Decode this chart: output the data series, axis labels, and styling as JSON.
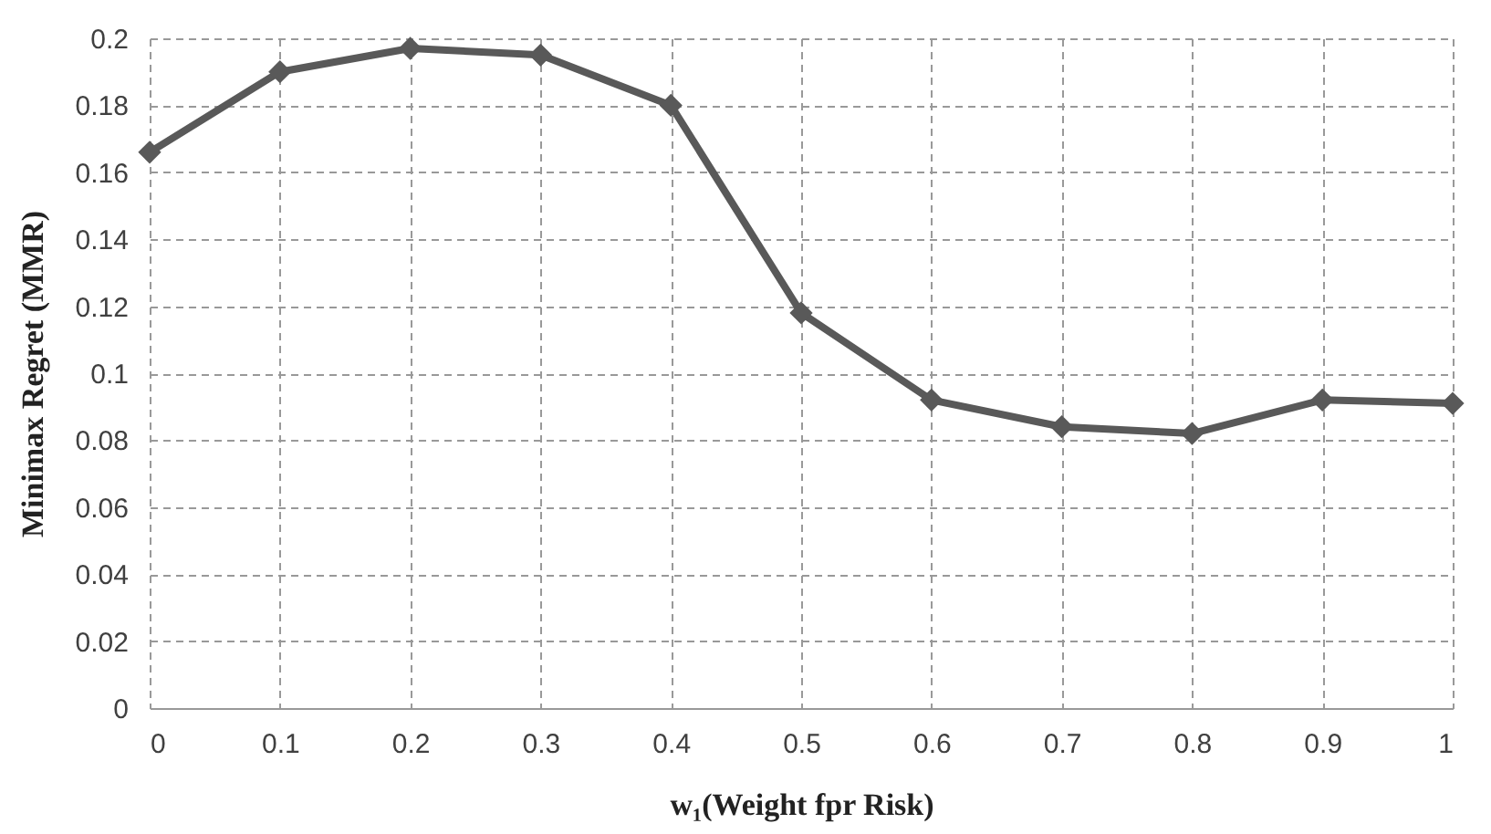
{
  "chart_data": {
    "type": "line",
    "xlabel": "w₁(Weight fpr Risk)",
    "ylabel": "Minimax Regret (MMR)",
    "x": [
      0,
      0.1,
      0.2,
      0.3,
      0.4,
      0.5,
      0.6,
      0.7,
      0.8,
      0.9,
      1
    ],
    "series": [
      {
        "color": "#595959",
        "values": [
          0.166,
          0.19,
          0.197,
          0.195,
          0.18,
          0.118,
          0.092,
          0.084,
          0.082,
          0.092,
          0.091
        ]
      }
    ],
    "xlim": [
      0,
      1
    ],
    "xticks": [
      0,
      0.1,
      0.2,
      0.3,
      0.4,
      0.5,
      0.6,
      0.7,
      0.8,
      0.9,
      1
    ],
    "ylim": [
      0,
      0.2
    ],
    "yticks": [
      0,
      0.02,
      0.04,
      0.06,
      0.08,
      0.1,
      0.12,
      0.14,
      0.16,
      0.18,
      0.2
    ],
    "grid": true,
    "marker": "diamond",
    "line_style": "solid",
    "legend": false
  }
}
